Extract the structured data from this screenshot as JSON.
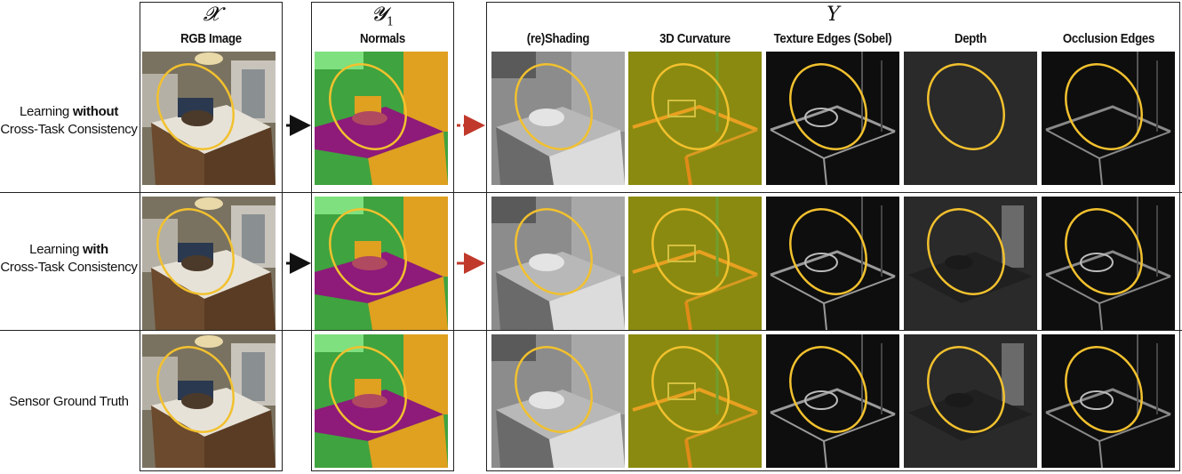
{
  "symbols": {
    "x": "𝓧",
    "y1": "𝓨",
    "y1_sub": "1",
    "y_big": "Y"
  },
  "columns": {
    "rgb": "RGB Image",
    "normals": "Normals",
    "targets": [
      "(re)Shading",
      "3D Curvature",
      "Texture Edges (Sobel)",
      "Depth",
      "Occlusion Edges"
    ]
  },
  "rows": [
    {
      "prefix": "Learning ",
      "bold": "without",
      "line2": "Cross-Task Consistency"
    },
    {
      "prefix": "Learning ",
      "bold": "with",
      "line2": "Cross-Task Consistency"
    },
    {
      "prefix": "Sensor Ground Truth",
      "bold": "",
      "line2": ""
    }
  ],
  "colors": {
    "highlight_ellipse": "#f2c12e",
    "arrow_black": "#111111",
    "arrow_red": "#c0392b",
    "normals_green": "#3fa33f",
    "normals_magenta": "#8e1a7a",
    "normals_orange": "#e0a020",
    "curvature_olive": "#8a8a10"
  }
}
